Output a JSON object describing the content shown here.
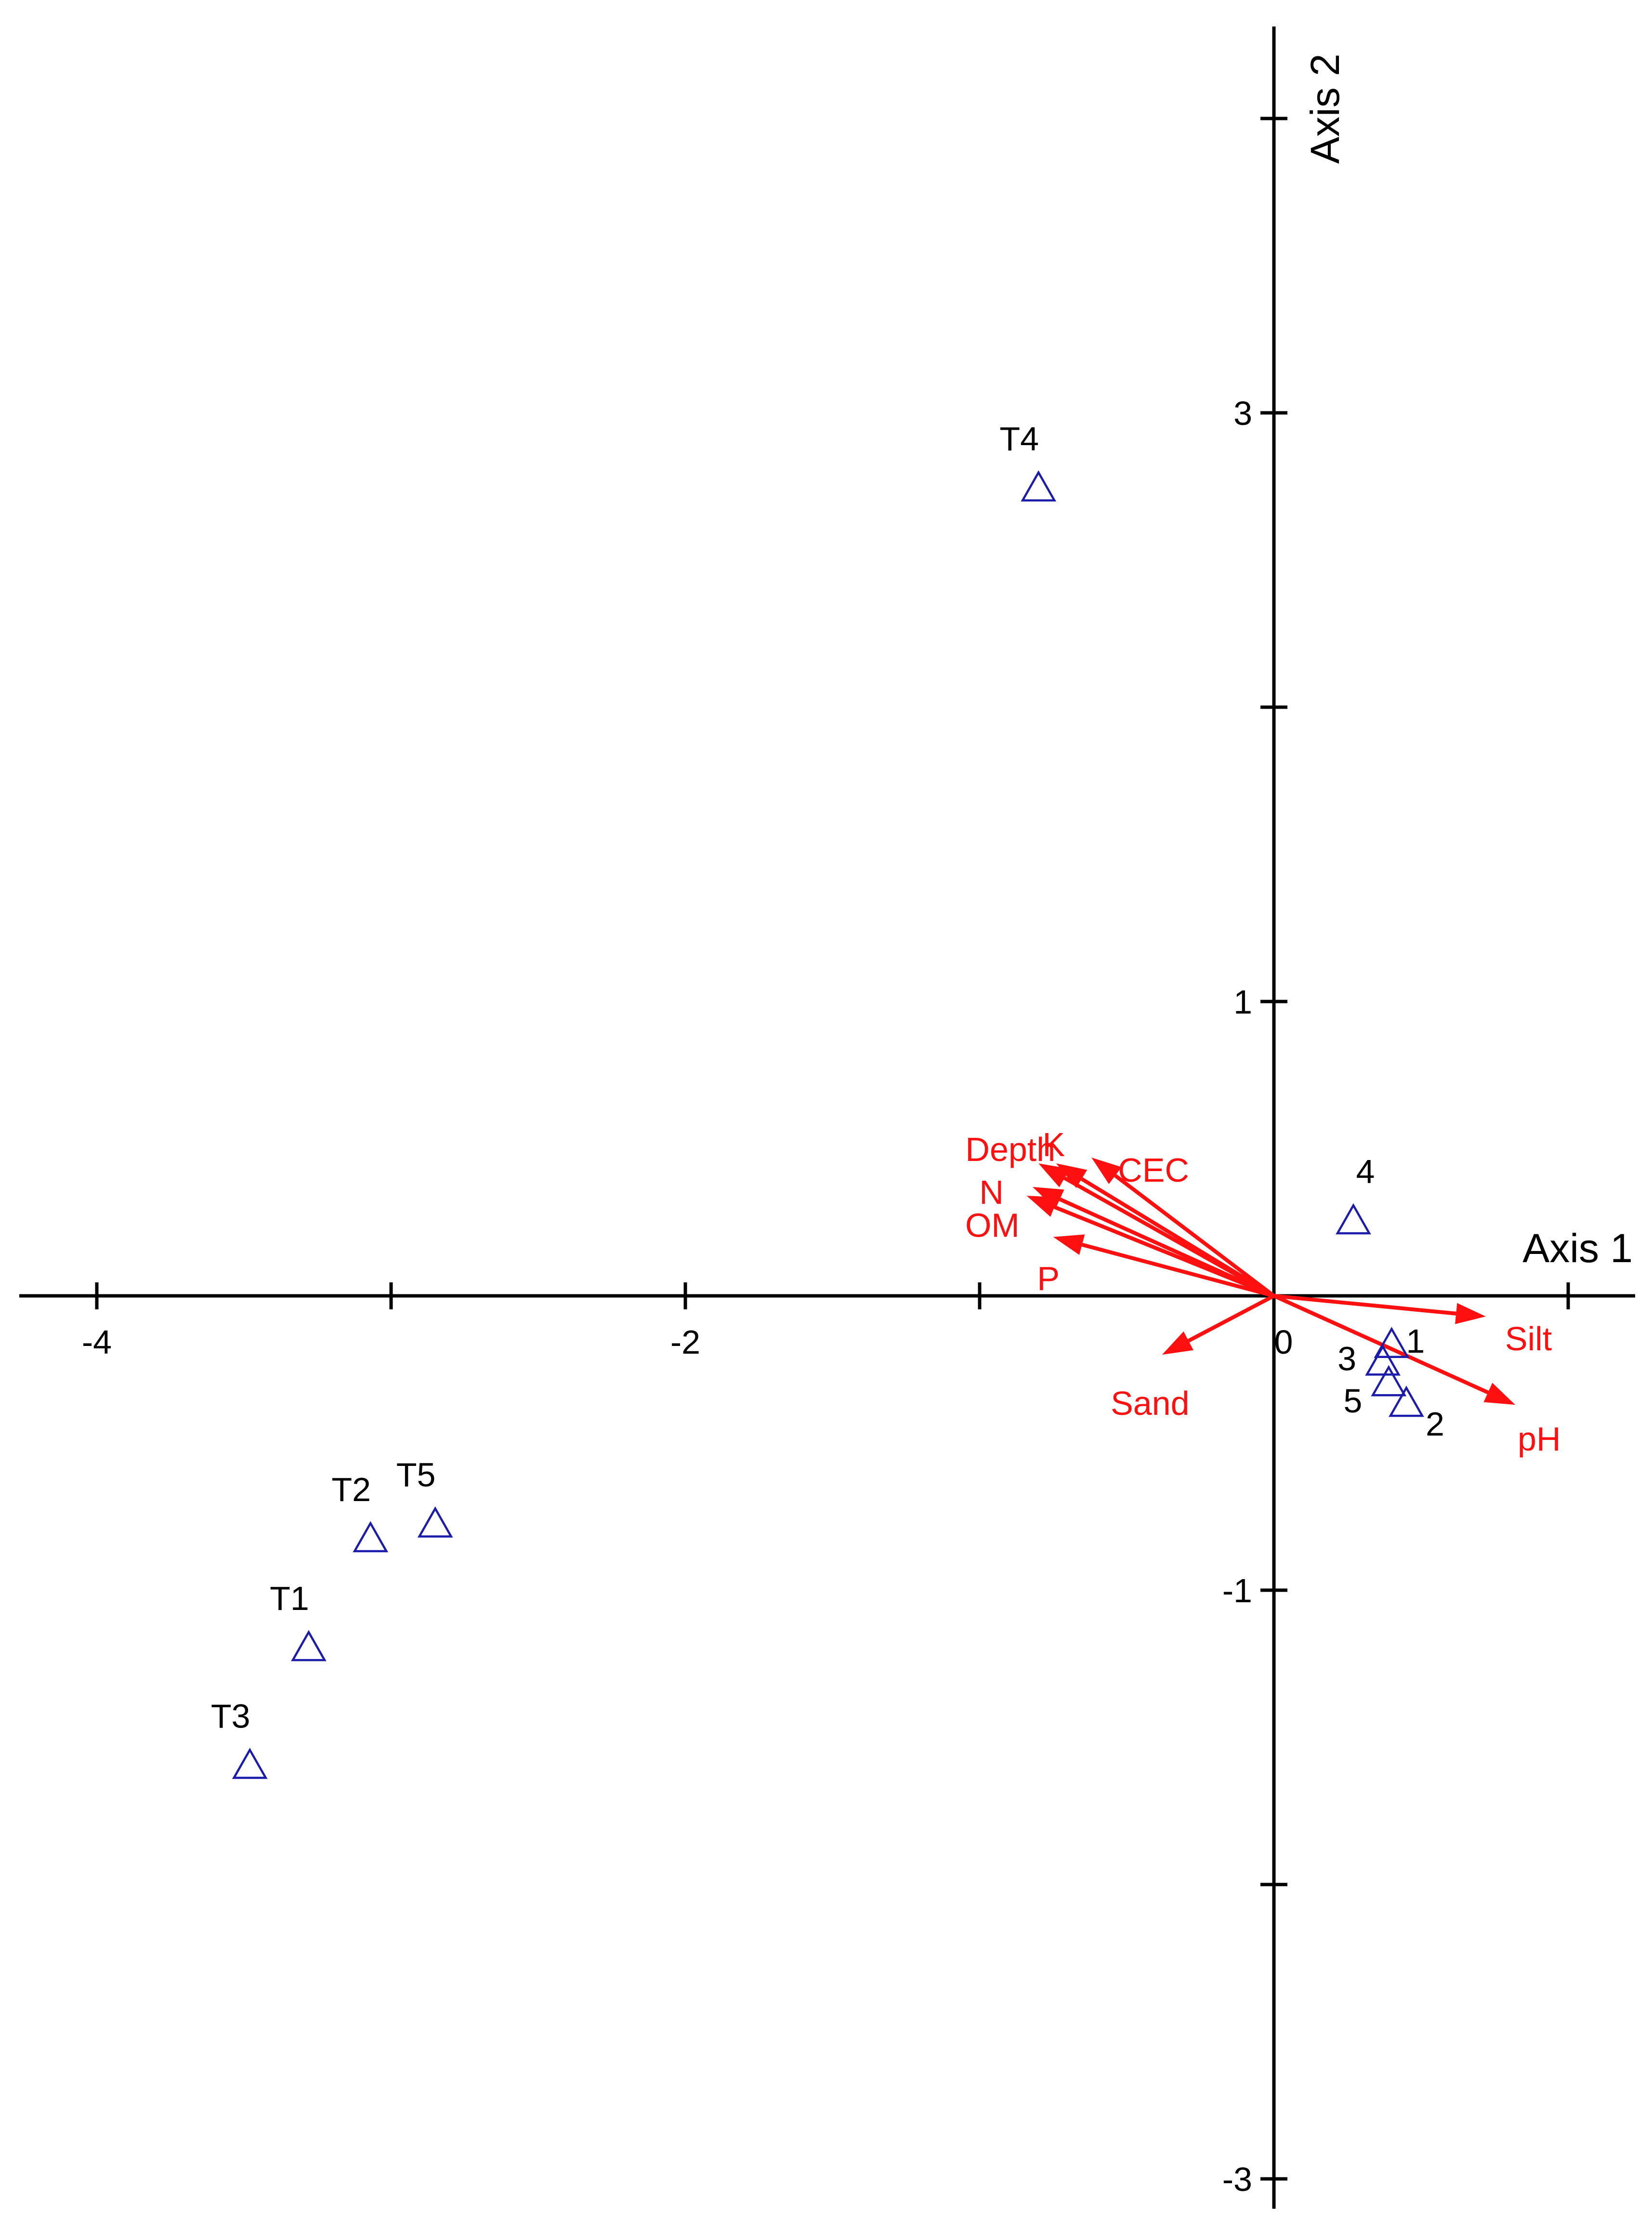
{
  "chart_data": {
    "type": "scatter",
    "title": "",
    "xlabel": "Axis 1",
    "ylabel": "Axis 2",
    "xlim": [
      -4.25,
      1.1
    ],
    "ylim": [
      -3.2,
      4.4
    ],
    "grid": false,
    "x_ticks": [
      -4,
      -3,
      -2,
      -1,
      0,
      1
    ],
    "x_tick_labels": [
      "-4",
      "",
      "-2",
      "",
      "0",
      ""
    ],
    "y_ticks": [
      -3,
      -2,
      -1,
      0,
      1,
      2,
      3,
      4
    ],
    "y_tick_labels": [
      "-3",
      "",
      "-1",
      "",
      "1",
      "",
      "3",
      ""
    ],
    "marker_color": "#1c1caa",
    "vector_color": "#ff1010",
    "series": [
      {
        "marker": "triangle-open",
        "points": [
          {
            "label": "T4",
            "x": -0.8,
            "y": 2.75
          },
          {
            "label": "T2",
            "x": -3.07,
            "y": -0.82
          },
          {
            "label": "T5",
            "x": -2.85,
            "y": -0.77
          },
          {
            "label": "T1",
            "x": -3.28,
            "y": -1.19
          },
          {
            "label": "T3",
            "x": -3.48,
            "y": -1.59
          },
          {
            "label": "4",
            "x": 0.27,
            "y": 0.26
          },
          {
            "label": "1",
            "x": 0.4,
            "y": -0.16
          },
          {
            "label": "3",
            "x": 0.37,
            "y": -0.22
          },
          {
            "label": "5",
            "x": 0.39,
            "y": -0.29
          },
          {
            "label": "2",
            "x": 0.45,
            "y": -0.36
          }
        ]
      },
      {
        "marker": "arrow",
        "vectors": [
          {
            "label": "Depth",
            "x": -0.8,
            "y": 0.45
          },
          {
            "label": "K",
            "x": -0.74,
            "y": 0.45
          },
          {
            "label": "CEC",
            "x": -0.62,
            "y": 0.47
          },
          {
            "label": "N",
            "x": -0.82,
            "y": 0.37
          },
          {
            "label": "OM",
            "x": -0.84,
            "y": 0.34
          },
          {
            "label": "P",
            "x": -0.75,
            "y": 0.2
          },
          {
            "label": "Silt",
            "x": 0.72,
            "y": -0.07
          },
          {
            "label": "pH",
            "x": 0.82,
            "y": -0.37
          },
          {
            "label": "Sand",
            "x": -0.38,
            "y": -0.2
          }
        ]
      }
    ]
  }
}
